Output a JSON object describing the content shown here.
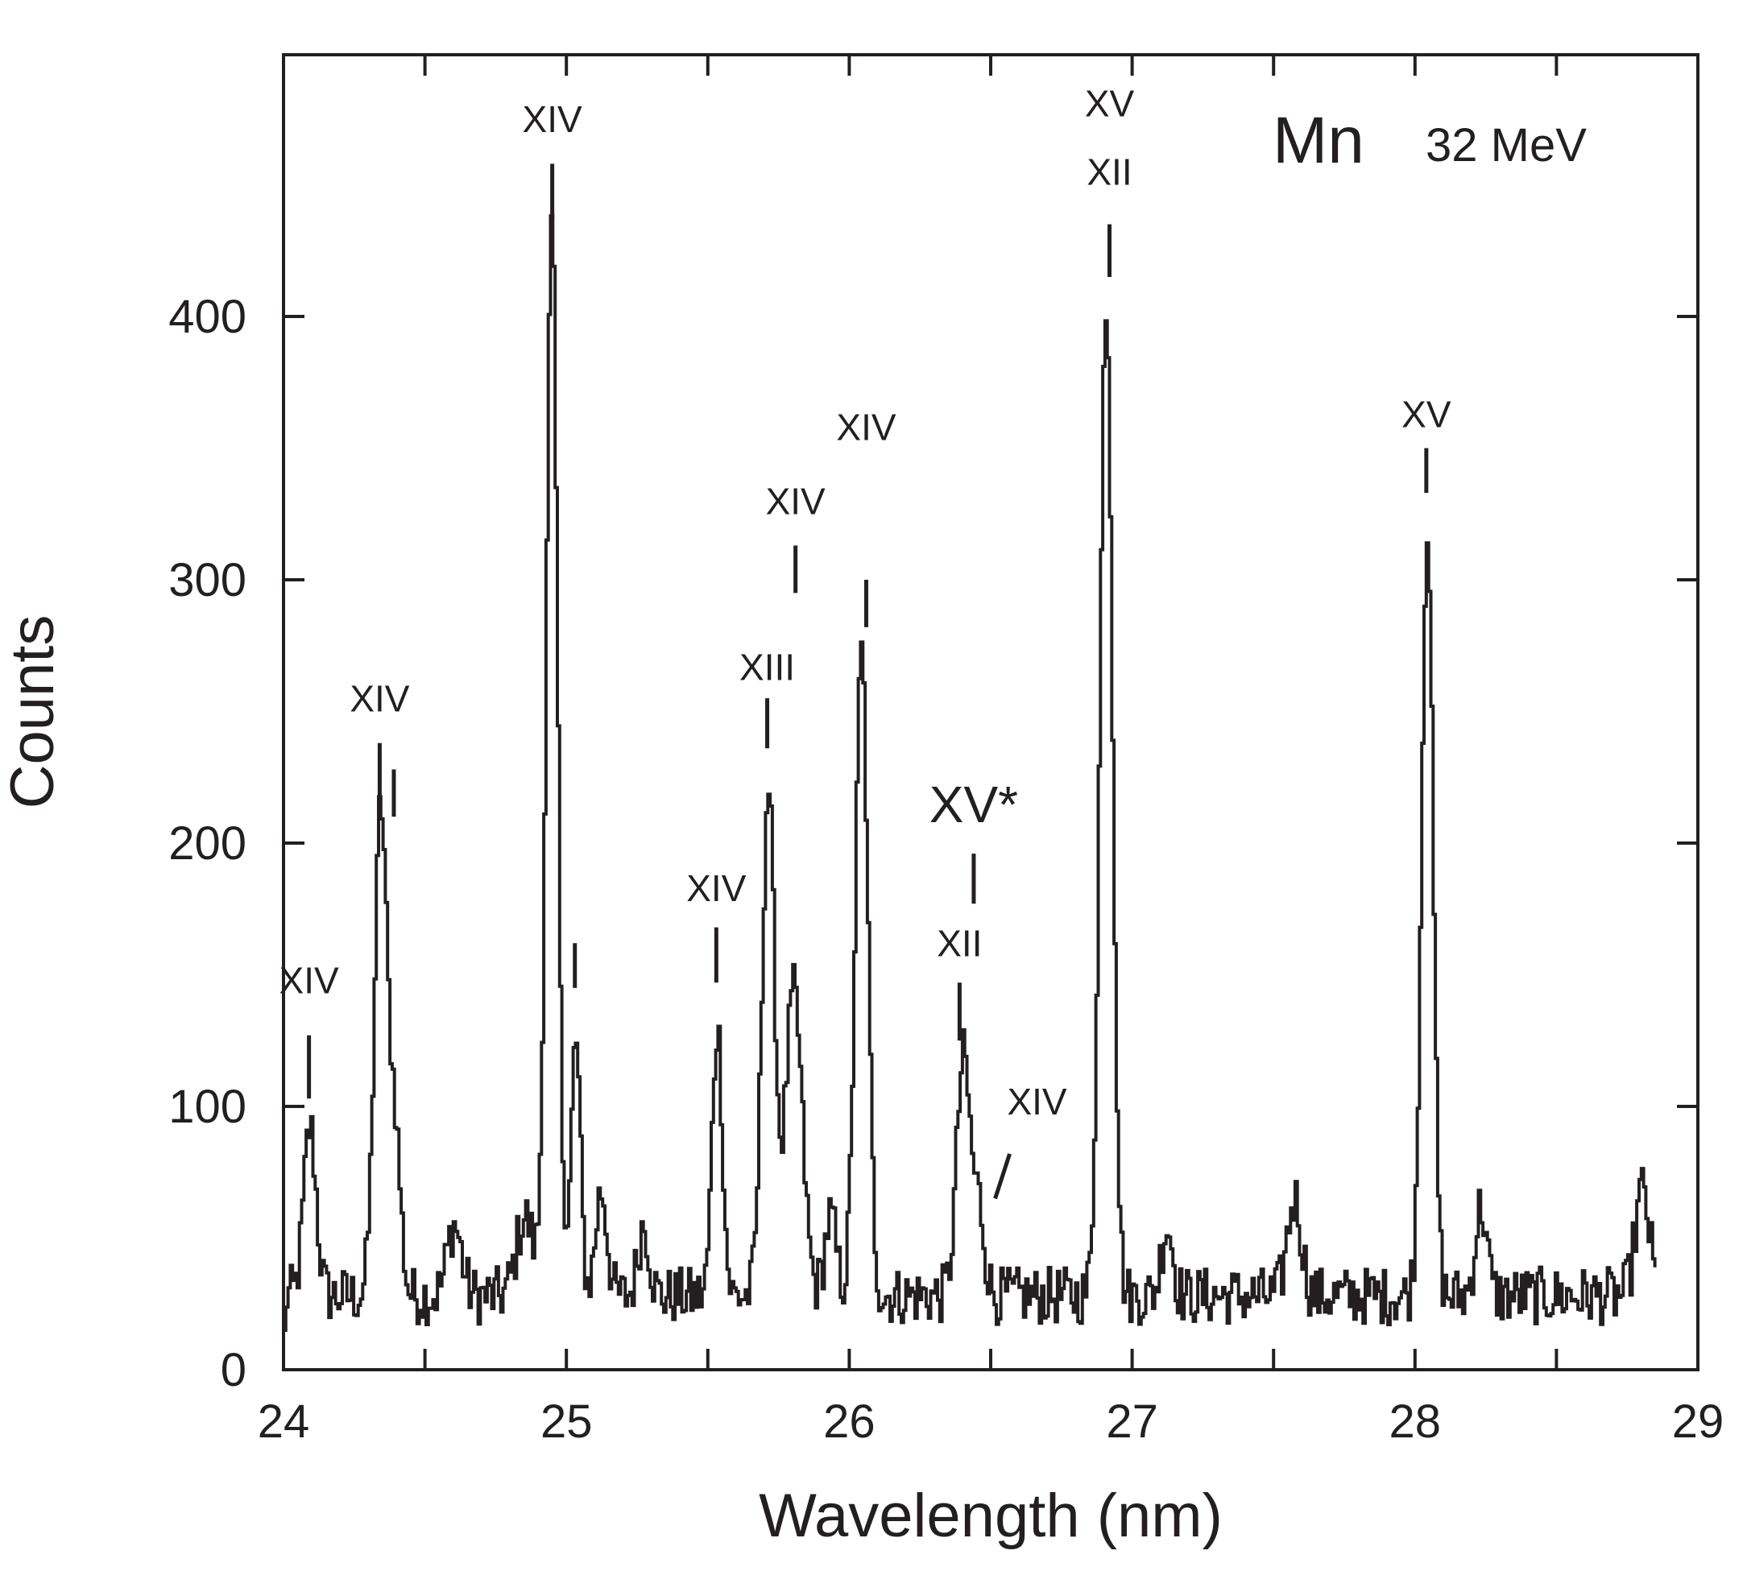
{
  "chart_data": {
    "type": "line",
    "title": "Mn",
    "subtitle": "32 MeV",
    "xlabel": "Wavelength (nm)",
    "ylabel": "Counts",
    "xlim": [
      24,
      29
    ],
    "ylim": [
      0,
      500
    ],
    "x_ticks": [
      24,
      25,
      26,
      27,
      28,
      29
    ],
    "y_ticks": [
      0,
      100,
      200,
      300,
      400
    ],
    "grid": false,
    "colors": {
      "line": "#231f20",
      "text": "#231f20"
    },
    "baseline": 28,
    "peaks": [
      {
        "x": 24.09,
        "y": 92,
        "w": 0.022
      },
      {
        "x": 24.34,
        "y": 212,
        "w": 0.022
      },
      {
        "x": 24.39,
        "y": 90,
        "w": 0.02
      },
      {
        "x": 24.6,
        "y": 55,
        "w": 0.025
      },
      {
        "x": 24.85,
        "y": 58,
        "w": 0.03
      },
      {
        "x": 24.945,
        "y": 432,
        "w": 0.02
      },
      {
        "x": 25.03,
        "y": 125,
        "w": 0.016
      },
      {
        "x": 25.12,
        "y": 68,
        "w": 0.02
      },
      {
        "x": 25.27,
        "y": 55,
        "w": 0.02
      },
      {
        "x": 25.53,
        "y": 130,
        "w": 0.018
      },
      {
        "x": 25.71,
        "y": 220,
        "w": 0.022
      },
      {
        "x": 25.8,
        "y": 143,
        "w": 0.03
      },
      {
        "x": 25.93,
        "y": 58,
        "w": 0.02
      },
      {
        "x": 26.04,
        "y": 272,
        "w": 0.022
      },
      {
        "x": 26.4,
        "y": 118,
        "w": 0.024
      },
      {
        "x": 26.455,
        "y": 60,
        "w": 0.02
      },
      {
        "x": 26.905,
        "y": 408,
        "w": 0.022
      },
      {
        "x": 27.12,
        "y": 55,
        "w": 0.02
      },
      {
        "x": 27.57,
        "y": 65,
        "w": 0.025
      },
      {
        "x": 28.04,
        "y": 322,
        "w": 0.02
      },
      {
        "x": 28.23,
        "y": 62,
        "w": 0.02
      },
      {
        "x": 28.8,
        "y": 68,
        "w": 0.025
      }
    ],
    "annotations": [
      {
        "label": "XIV",
        "x": 24.09,
        "text_y": 143,
        "mark_y1": 103,
        "mark_y2": 127
      },
      {
        "label": "XIV",
        "x": 24.34,
        "text_y": 250,
        "mark_y1": 215,
        "mark_y2": 238
      },
      {
        "label": "",
        "x": 24.39,
        "text_y": null,
        "mark_y1": 210,
        "mark_y2": 228
      },
      {
        "label": "XIV",
        "x": 24.95,
        "text_y": 470,
        "mark_y1": 437,
        "mark_y2": 458
      },
      {
        "label": "",
        "x": 25.03,
        "text_y": null,
        "mark_y1": 145,
        "mark_y2": 162
      },
      {
        "label": "XIV",
        "x": 25.53,
        "text_y": 178,
        "mark_y1": 147,
        "mark_y2": 168
      },
      {
        "label": "XIII",
        "x": 25.71,
        "text_y": 262,
        "mark_y1": 236,
        "mark_y2": 255
      },
      {
        "label": "XIV",
        "x": 25.81,
        "text_y": 325,
        "mark_y1": 295,
        "mark_y2": 313
      },
      {
        "label": "XIV",
        "x": 26.06,
        "text_y": 353,
        "mark_y1": 282,
        "mark_y2": 300
      },
      {
        "label": "XV*",
        "x": 26.44,
        "text_y": 208,
        "mark_y1": 177,
        "mark_y2": 196,
        "big": true
      },
      {
        "label": "XII",
        "x": 26.39,
        "text_y": 157,
        "mark_y1": 125,
        "mark_y2": 147
      },
      {
        "label": "XIV",
        "x": 26.55,
        "text_y": 97,
        "mark_y1": 65,
        "mark_y2": 82,
        "slant": true
      },
      {
        "label": "XV",
        "x": 26.92,
        "text_y": 476,
        "mark_y1": null,
        "mark_y2": null
      },
      {
        "label": "XII",
        "x": 26.92,
        "text_y": 450,
        "mark_y1": 415,
        "mark_y2": 435
      },
      {
        "label": "XV",
        "x": 28.04,
        "text_y": 358,
        "mark_y1": 333,
        "mark_y2": 350
      }
    ]
  }
}
